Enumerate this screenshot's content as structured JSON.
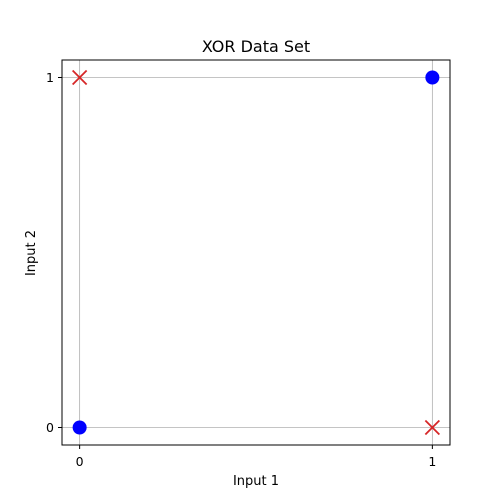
{
  "chart_data": {
    "type": "scatter",
    "title": "XOR Data Set",
    "xlabel": "Input 1",
    "ylabel": "Input 2",
    "xlim": [
      -0.05,
      1.05
    ],
    "ylim": [
      -0.05,
      1.05
    ],
    "xticks": [
      "0",
      "1"
    ],
    "yticks": [
      "0",
      "1"
    ],
    "grid": true,
    "series": [
      {
        "marker": "circle",
        "color": "#0000ff",
        "points": [
          {
            "x": 0,
            "y": 0
          },
          {
            "x": 1,
            "y": 1
          }
        ]
      },
      {
        "marker": "x",
        "color": "#d62728",
        "points": [
          {
            "x": 0,
            "y": 1
          },
          {
            "x": 1,
            "y": 0
          }
        ]
      }
    ]
  }
}
